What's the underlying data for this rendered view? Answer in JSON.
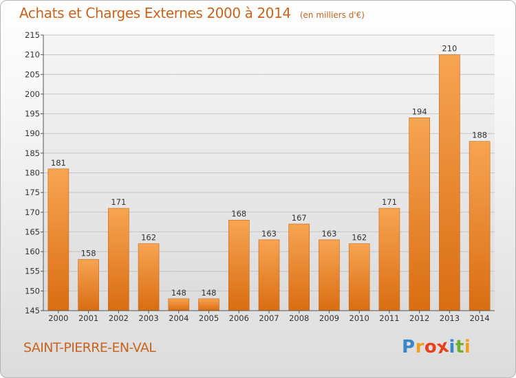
{
  "chart_data": {
    "type": "bar",
    "title": "Achats et Charges Externes 2000 à 2014",
    "subtitle": "(en milliers d'€)",
    "categories": [
      "2000",
      "2001",
      "2002",
      "2003",
      "2004",
      "2005",
      "2006",
      "2007",
      "2008",
      "2009",
      "2010",
      "2011",
      "2012",
      "2013",
      "2014"
    ],
    "values": [
      181,
      158,
      171,
      162,
      148,
      148,
      168,
      163,
      167,
      163,
      162,
      171,
      194,
      210,
      188
    ],
    "ylim": [
      145,
      215
    ],
    "yticks": [
      145,
      150,
      155,
      160,
      165,
      170,
      175,
      180,
      185,
      190,
      195,
      200,
      205,
      210,
      215
    ],
    "grid": true,
    "bar_color": "#f0902a"
  },
  "footer": {
    "place_name": "SAINT-PIERRE-EN-VAL"
  },
  "logo": {
    "text": "Proxiti",
    "letters": [
      "P",
      "r",
      "o",
      "x",
      "i",
      "t",
      "i"
    ],
    "letter_colors": [
      "#3a86c8",
      "#f0a020",
      "#e8401c",
      "#e8401c",
      "#3a86c8",
      "#70b030",
      "#f0a020"
    ]
  }
}
